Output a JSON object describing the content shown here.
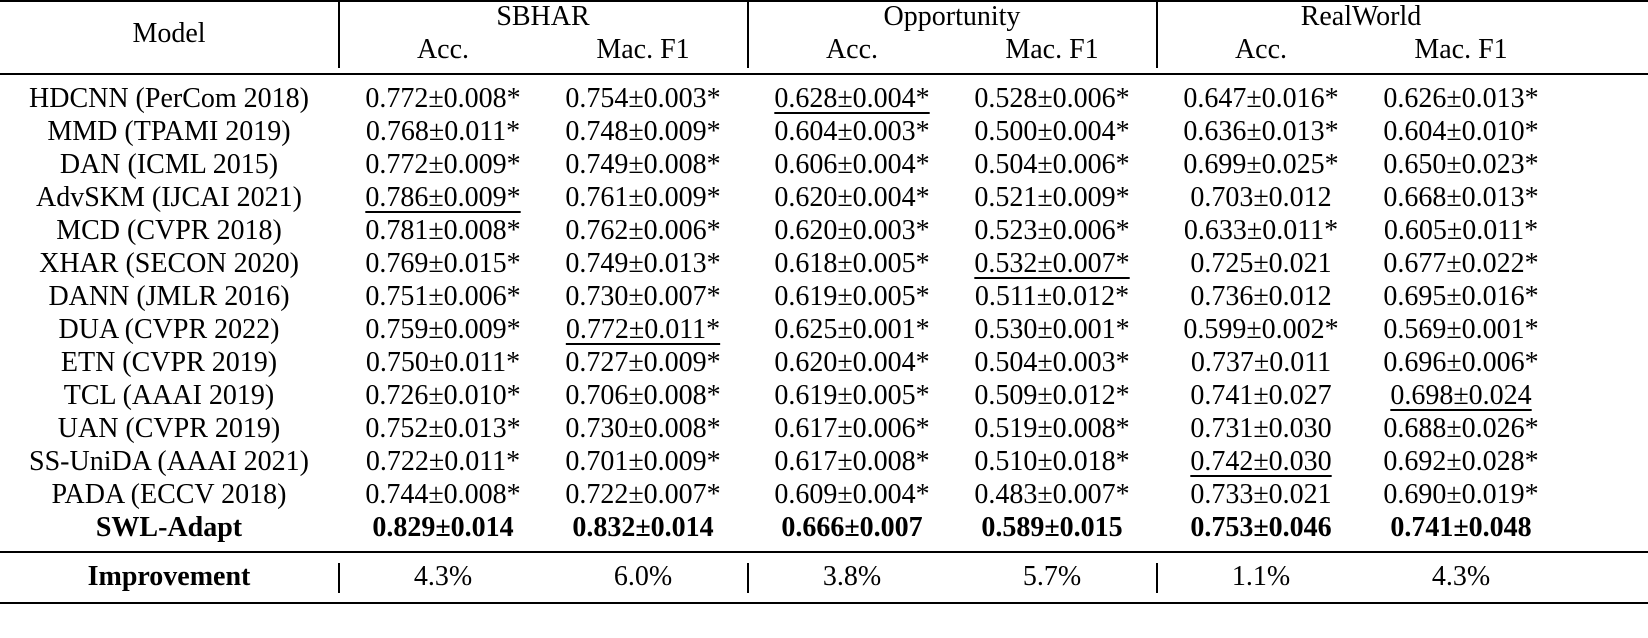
{
  "header": {
    "model_label": "Model",
    "groups": [
      "SBHAR",
      "Opportunity",
      "RealWorld"
    ],
    "metrics": [
      "Acc.",
      "Mac. F1",
      "Acc.",
      "Mac. F1",
      "Acc.",
      "Mac. F1"
    ]
  },
  "rows": [
    {
      "model": "HDCNN (PerCom 2018)",
      "values": [
        "0.772±0.008*",
        "0.754±0.003*",
        "0.628±0.004*",
        "0.528±0.006*",
        "0.647±0.016*",
        "0.626±0.013*"
      ]
    },
    {
      "model": "MMD (TPAMI 2019)",
      "values": [
        "0.768±0.011*",
        "0.748±0.009*",
        "0.604±0.003*",
        "0.500±0.004*",
        "0.636±0.013*",
        "0.604±0.010*"
      ]
    },
    {
      "model": "DAN (ICML 2015)",
      "values": [
        "0.772±0.009*",
        "0.749±0.008*",
        "0.606±0.004*",
        "0.504±0.006*",
        "0.699±0.025*",
        "0.650±0.023*"
      ]
    },
    {
      "model": "AdvSKM (IJCAI 2021)",
      "values": [
        "0.786±0.009*",
        "0.761±0.009*",
        "0.620±0.004*",
        "0.521±0.009*",
        "0.703±0.012",
        "0.668±0.013*"
      ]
    },
    {
      "model": "MCD (CVPR 2018)",
      "values": [
        "0.781±0.008*",
        "0.762±0.006*",
        "0.620±0.003*",
        "0.523±0.006*",
        "0.633±0.011*",
        "0.605±0.011*"
      ]
    },
    {
      "model": "XHAR (SECON 2020)",
      "values": [
        "0.769±0.015*",
        "0.749±0.013*",
        "0.618±0.005*",
        "0.532±0.007*",
        "0.725±0.021",
        "0.677±0.022*"
      ]
    },
    {
      "model": "DANN (JMLR 2016)",
      "values": [
        "0.751±0.006*",
        "0.730±0.007*",
        "0.619±0.005*",
        "0.511±0.012*",
        "0.736±0.012",
        "0.695±0.016*"
      ]
    },
    {
      "model": "DUA (CVPR 2022)",
      "values": [
        "0.759±0.009*",
        "0.772±0.011*",
        "0.625±0.001*",
        "0.530±0.001*",
        "0.599±0.002*",
        "0.569±0.001*"
      ]
    },
    {
      "model": "ETN (CVPR 2019)",
      "values": [
        "0.750±0.011*",
        "0.727±0.009*",
        "0.620±0.004*",
        "0.504±0.003*",
        "0.737±0.011",
        "0.696±0.006*"
      ]
    },
    {
      "model": "TCL (AAAI 2019)",
      "values": [
        "0.726±0.010*",
        "0.706±0.008*",
        "0.619±0.005*",
        "0.509±0.012*",
        "0.741±0.027",
        "0.698±0.024"
      ]
    },
    {
      "model": "UAN (CVPR 2019)",
      "values": [
        "0.752±0.013*",
        "0.730±0.008*",
        "0.617±0.006*",
        "0.519±0.008*",
        "0.731±0.030",
        "0.688±0.026*"
      ]
    },
    {
      "model": "SS-UniDA (AAAI 2021)",
      "values": [
        "0.722±0.011*",
        "0.701±0.009*",
        "0.617±0.008*",
        "0.510±0.018*",
        "0.742±0.030",
        "0.692±0.028*"
      ]
    },
    {
      "model": "PADA (ECCV 2018)",
      "values": [
        "0.744±0.008*",
        "0.722±0.007*",
        "0.609±0.004*",
        "0.483±0.007*",
        "0.733±0.021",
        "0.690±0.019*"
      ]
    },
    {
      "model": "SWL-Adapt",
      "values": [
        "0.829±0.014",
        "0.832±0.014",
        "0.666±0.007",
        "0.589±0.015",
        "0.753±0.046",
        "0.741±0.048"
      ]
    }
  ],
  "improvement": {
    "label": "Improvement",
    "values": [
      "4.3%",
      "6.0%",
      "3.8%",
      "5.7%",
      "1.1%",
      "4.3%"
    ]
  },
  "underlined_cells": [
    [
      3,
      0
    ],
    [
      7,
      1
    ],
    [
      0,
      2
    ],
    [
      5,
      3
    ],
    [
      11,
      4
    ],
    [
      9,
      5
    ]
  ],
  "bold_row": 13
}
